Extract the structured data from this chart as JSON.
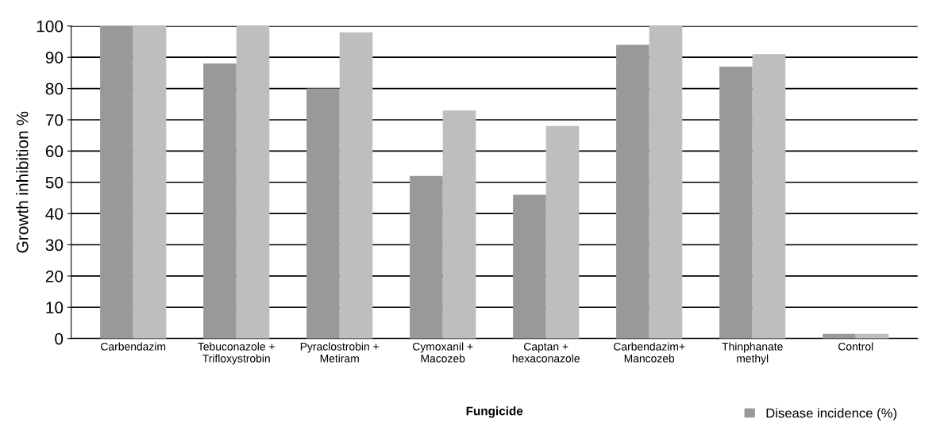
{
  "chart_data": {
    "type": "bar",
    "xlabel": "Fungicide",
    "ylabel": "Growth inhibition %",
    "categories": [
      "Carbendazim",
      "Tebuconazole +\nTrifloxystrobin",
      "Pyraclostrobin +\nMetiram",
      "Cymoxanil +\nMacozeb",
      "Captan +\nhexaconazole",
      "Carbendazim+\nMancozeb",
      "Thinphanate\nmethyl",
      "Control"
    ],
    "series": [
      {
        "name": "Disease incidence (%)",
        "color": "#999999",
        "values": [
          100,
          88,
          80,
          52,
          46,
          94,
          87,
          1.5
        ]
      },
      {
        "color": "#bebebe",
        "values": [
          100,
          100,
          98,
          73,
          68,
          100,
          91,
          1.5
        ]
      }
    ],
    "ylim": [
      0,
      100
    ],
    "yticks": [
      0,
      10,
      20,
      30,
      40,
      50,
      60,
      70,
      80,
      90,
      100
    ],
    "grid": "y",
    "legend": "bottom right"
  }
}
